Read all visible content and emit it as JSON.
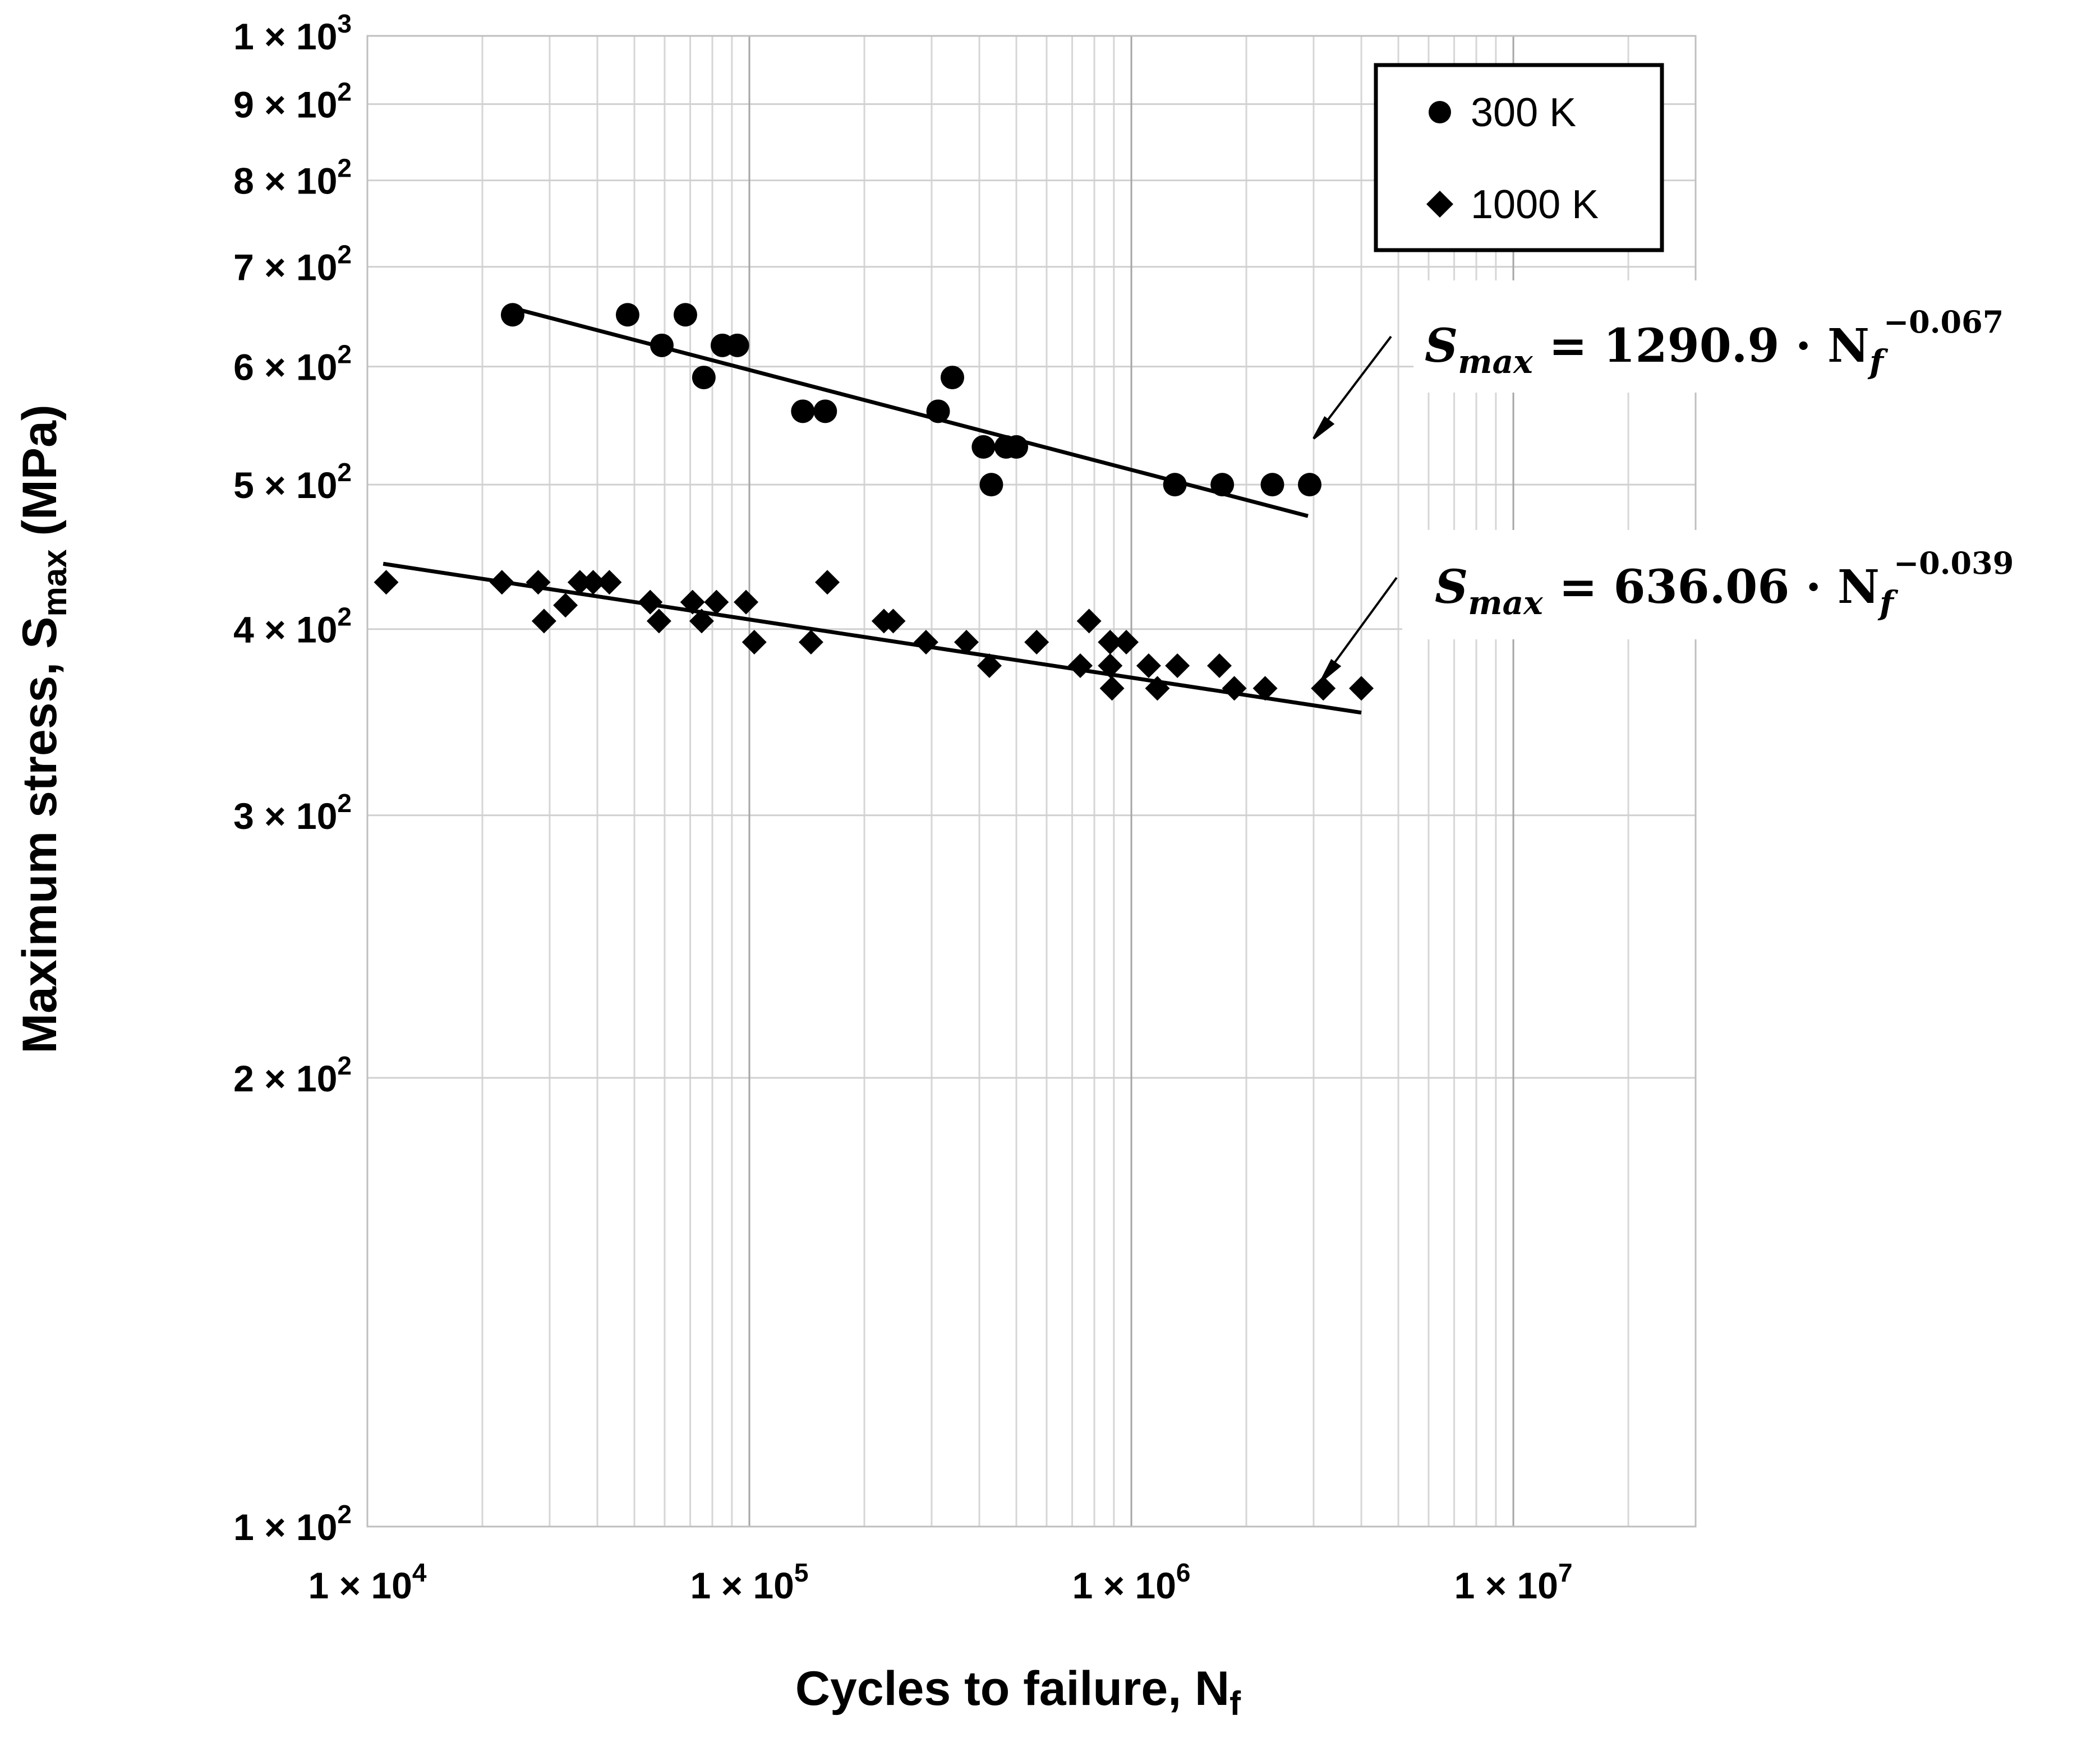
{
  "chart_data": {
    "type": "scatter",
    "scale": {
      "x": "log",
      "y": "log"
    },
    "xlabel": "Cycles to failure, N",
    "xlabel_sub": "f",
    "ylabel": "Maximum stress, S",
    "ylabel_sub": "max",
    "ylabel_suffix": " (MPa)",
    "xlim": [
      10000,
      30000000
    ],
    "ylim": [
      100,
      1000
    ],
    "x_ticks": [
      {
        "value": 10000,
        "label": "1 × 10",
        "exp": "4"
      },
      {
        "value": 100000,
        "label": "1 × 10",
        "exp": "5"
      },
      {
        "value": 1000000,
        "label": "1 × 10",
        "exp": "6"
      },
      {
        "value": 10000000,
        "label": "1 × 10",
        "exp": "7"
      }
    ],
    "y_ticks": [
      {
        "value": 1000,
        "label": "1 × 10",
        "exp": "3"
      },
      {
        "value": 900,
        "label": "9 × 10",
        "exp": "2"
      },
      {
        "value": 800,
        "label": "8 × 10",
        "exp": "2"
      },
      {
        "value": 700,
        "label": "7 × 10",
        "exp": "2"
      },
      {
        "value": 600,
        "label": "6 × 10",
        "exp": "2"
      },
      {
        "value": 500,
        "label": "5 × 10",
        "exp": "2"
      },
      {
        "value": 400,
        "label": "4 × 10",
        "exp": "2"
      },
      {
        "value": 300,
        "label": "3 × 10",
        "exp": "2"
      },
      {
        "value": 200,
        "label": "2 × 10",
        "exp": "2"
      },
      {
        "value": 100,
        "label": "1 × 10",
        "exp": "2"
      }
    ],
    "grid": true,
    "legend_position": "top-right",
    "series": [
      {
        "name": "300 K",
        "marker": "circle",
        "points": [
          [
            24000,
            650
          ],
          [
            48000,
            650
          ],
          [
            59000,
            620
          ],
          [
            68000,
            650
          ],
          [
            76000,
            590
          ],
          [
            85000,
            620
          ],
          [
            93000,
            620
          ],
          [
            138000,
            560
          ],
          [
            158000,
            560
          ],
          [
            312000,
            560
          ],
          [
            340000,
            590
          ],
          [
            410000,
            530
          ],
          [
            430000,
            500
          ],
          [
            470000,
            530
          ],
          [
            500000,
            530
          ],
          [
            1300000,
            500
          ],
          [
            1730000,
            500
          ],
          [
            2340000,
            500
          ],
          [
            2930000,
            500
          ]
        ],
        "fit": {
          "a": 1290.9,
          "b": -0.067,
          "x_range": [
            24000,
            2900000
          ]
        },
        "equation": {
          "lhs": "S",
          "lhs_sub": "max",
          "rhs": " = 1290.9 · N",
          "rhs_sub": "f",
          "exp": "−0.067"
        }
      },
      {
        "name": "1000 K",
        "marker": "diamond",
        "points": [
          [
            11200,
            430
          ],
          [
            22500,
            430
          ],
          [
            28000,
            430
          ],
          [
            29000,
            405
          ],
          [
            33000,
            415
          ],
          [
            36000,
            430
          ],
          [
            39000,
            430
          ],
          [
            43000,
            430
          ],
          [
            55000,
            417
          ],
          [
            58000,
            405
          ],
          [
            71000,
            417
          ],
          [
            75000,
            405
          ],
          [
            82000,
            417
          ],
          [
            98000,
            417
          ],
          [
            103000,
            392
          ],
          [
            145000,
            392
          ],
          [
            160000,
            430
          ],
          [
            225000,
            405
          ],
          [
            238000,
            405
          ],
          [
            290000,
            392
          ],
          [
            370000,
            392
          ],
          [
            425000,
            378
          ],
          [
            565000,
            392
          ],
          [
            735000,
            378
          ],
          [
            775000,
            405
          ],
          [
            880000,
            392
          ],
          [
            880000,
            378
          ],
          [
            890000,
            365
          ],
          [
            970000,
            392
          ],
          [
            1110000,
            378
          ],
          [
            1170000,
            365
          ],
          [
            1320000,
            378
          ],
          [
            1700000,
            378
          ],
          [
            1860000,
            365
          ],
          [
            2240000,
            365
          ],
          [
            3180000,
            365
          ],
          [
            4000000,
            365
          ]
        ],
        "fit": {
          "a": 636.06,
          "b": -0.039,
          "x_range": [
            11000,
            4000000
          ]
        },
        "equation": {
          "lhs": "S",
          "lhs_sub": "max",
          "rhs": " = 636.06 · N",
          "rhs_sub": "f",
          "exp": "−0.039"
        }
      }
    ]
  }
}
